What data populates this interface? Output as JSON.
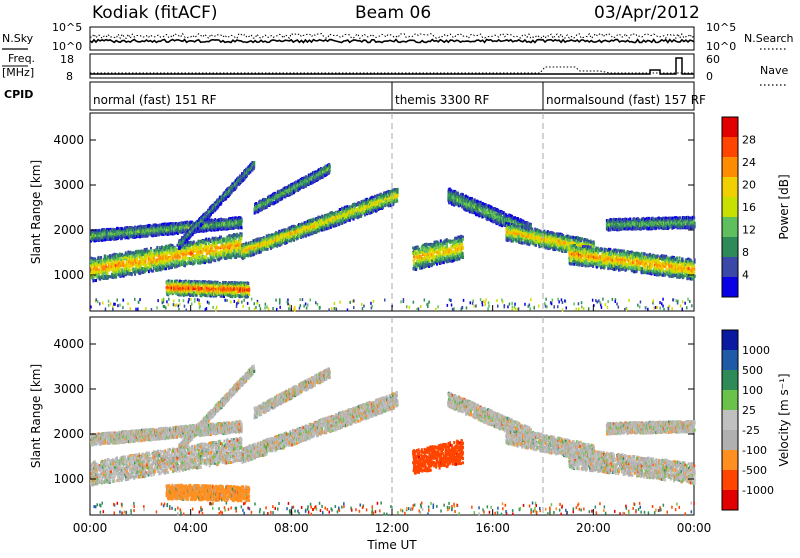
{
  "header": {
    "station": "Kodiak (fitACF)",
    "beam": "Beam 06",
    "date": "03/Apr/2012"
  },
  "side_labels": {
    "nsky": "N.Sky",
    "freq_top": "Freq.",
    "freq_unit": "[MHz]",
    "cpid": "CPID",
    "nsearch": "N.Search",
    "nave": "Nave"
  },
  "top_panel_ticks": {
    "nsky_high": "10^5",
    "nsky_low": "10^0",
    "nsearch_high": "10^5",
    "nsearch_low": "10^0",
    "freq_high": "18",
    "freq_low": "8",
    "nave_high": "60",
    "nave_low": "0"
  },
  "cpid_segments": [
    {
      "label": "normal (fast) 151 RF",
      "start_hour": 0
    },
    {
      "label": "themis 3300 RF",
      "start_hour": 12
    },
    {
      "label": "normalsound (fast) 157 RF",
      "start_hour": 18
    }
  ],
  "colors": {
    "power": [
      "#0a00e6",
      "#3a48a8",
      "#2e8b57",
      "#5fbf5f",
      "#c8e000",
      "#f0d000",
      "#ff8c00",
      "#ff4500",
      "#e00000"
    ],
    "velocity": [
      "#e00000",
      "#ff4500",
      "#ff9020",
      "#b0b0b0",
      "#c0c0c0",
      "#6bc24a",
      "#2e8b57",
      "#1e5aa8",
      "#0a1aa0"
    ]
  },
  "chart_data": {
    "type": "heatmap",
    "xlabel": "Time UT",
    "ylabel": "Slant Range [km]",
    "x_ticks": [
      "00:00",
      "04:00",
      "08:00",
      "12:00",
      "16:00",
      "20:00",
      "00:00"
    ],
    "x_tick_hours": [
      0,
      4,
      8,
      12,
      16,
      20,
      24
    ],
    "xlim_hours": [
      0,
      24
    ],
    "ylim": [
      200,
      4600
    ],
    "y_ticks": [
      1000,
      2000,
      3000,
      4000
    ],
    "panels": [
      {
        "name": "Power",
        "colorbar_label": "Power [dB]",
        "colorbar_ticks": [
          "28",
          "24",
          "20",
          "16",
          "12",
          "8",
          "4"
        ],
        "range": [
          0,
          30
        ]
      },
      {
        "name": "Velocity",
        "colorbar_label": "Velocity [m s⁻¹]",
        "colorbar_ticks": [
          "1000",
          "500",
          "100",
          "25",
          "-25",
          "-100",
          "-500",
          "-1000"
        ],
        "range": [
          -1200,
          1200
        ]
      }
    ],
    "scatter_bands": [
      {
        "t0": 0.0,
        "t1": 6.0,
        "r0": 1150,
        "r1": 1700,
        "w": 260,
        "p": 22,
        "v": 0
      },
      {
        "t0": 0.0,
        "t1": 6.0,
        "r0": 1900,
        "r1": 2200,
        "w": 120,
        "p": 12,
        "v": 0
      },
      {
        "t0": 3.0,
        "t1": 6.3,
        "r0": 750,
        "r1": 700,
        "w": 160,
        "p": 26,
        "v": -50
      },
      {
        "t0": 6.0,
        "t1": 9.0,
        "r0": 1550,
        "r1": 2150,
        "w": 160,
        "p": 20,
        "v": 0
      },
      {
        "t0": 9.0,
        "t1": 12.2,
        "r0": 2150,
        "r1": 2800,
        "w": 170,
        "p": 18,
        "v": 0
      },
      {
        "t0": 3.5,
        "t1": 6.5,
        "r0": 1700,
        "r1": 3500,
        "w": 90,
        "p": 10,
        "v": 0
      },
      {
        "t0": 6.5,
        "t1": 9.5,
        "r0": 2500,
        "r1": 3400,
        "w": 110,
        "p": 12,
        "v": 0
      },
      {
        "t0": 12.8,
        "t1": 14.8,
        "r0": 1400,
        "r1": 1650,
        "w": 260,
        "p": 20,
        "v": -400
      },
      {
        "t0": 14.2,
        "t1": 17.5,
        "r0": 2800,
        "r1": 2000,
        "w": 160,
        "p": 12,
        "v": 0
      },
      {
        "t0": 16.5,
        "t1": 20.0,
        "r0": 2000,
        "r1": 1600,
        "w": 190,
        "p": 20,
        "v": 0
      },
      {
        "t0": 19.0,
        "t1": 24.0,
        "r0": 1500,
        "r1": 1150,
        "w": 220,
        "p": 22,
        "v": 0
      },
      {
        "t0": 20.5,
        "t1": 24.0,
        "r0": 2150,
        "r1": 2200,
        "w": 120,
        "p": 12,
        "v": 0
      }
    ]
  }
}
